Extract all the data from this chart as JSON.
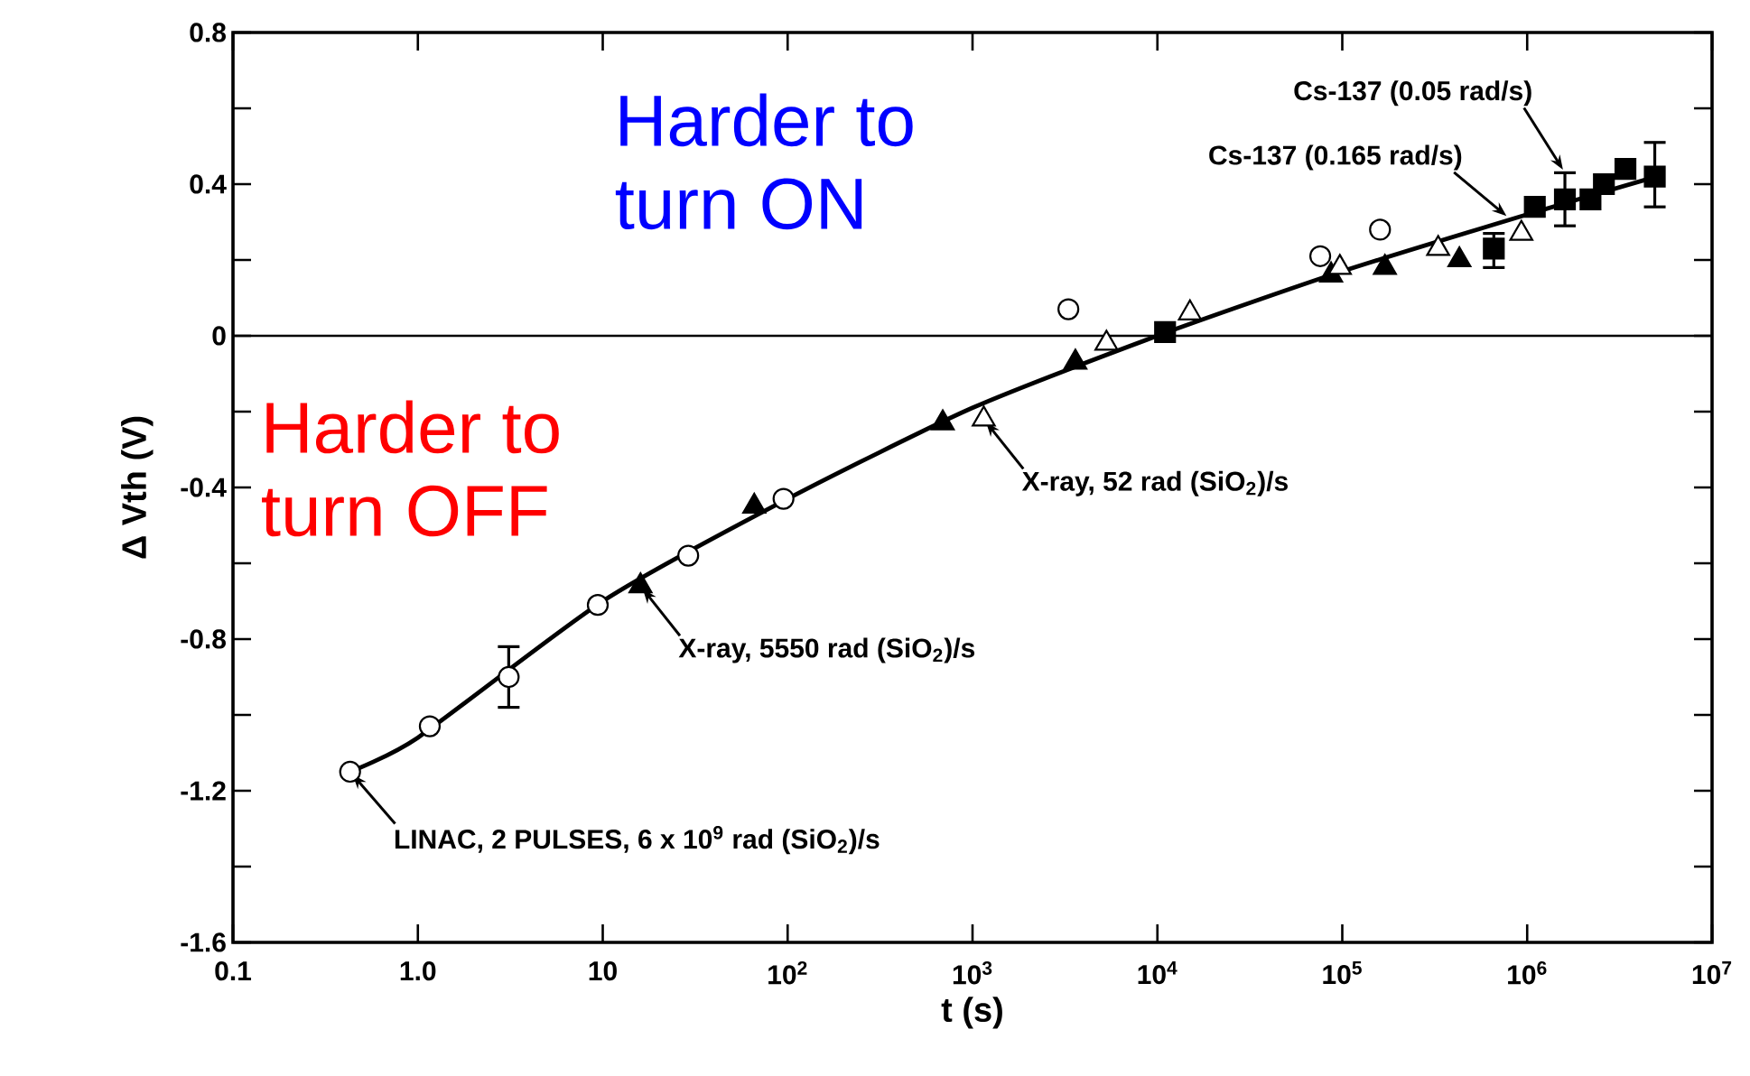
{
  "chart_data": {
    "type": "scatter",
    "xlabel": "t (s)",
    "ylabel": "Δ Vth (V)",
    "log": "x",
    "xlim": [
      0.1,
      10000000
    ],
    "ylim": [
      -1.6,
      0.8
    ],
    "xticks": [
      0.1,
      {
        "value": 1,
        "label": "1.0"
      },
      10,
      {
        "value": 100,
        "label": "10$^{2}$"
      },
      {
        "value": 1000,
        "label": "10$^{3}$"
      },
      {
        "value": 10000,
        "label": "10$^{4}$"
      },
      {
        "value": 100000,
        "label": "10$^{5}$"
      },
      {
        "value": 1000000,
        "label": "10$^{6}$"
      },
      {
        "value": 10000000,
        "label": "10$^{7}$"
      }
    ],
    "yticks": [
      0.8,
      {
        "value": 0.6,
        "label": null
      },
      0.4,
      {
        "value": 0.2,
        "label": null
      },
      0,
      {
        "value": -0.2,
        "label": null
      },
      -0.4,
      {
        "value": -0.6,
        "label": null
      },
      -0.8,
      {
        "value": -1.0,
        "label": null
      },
      -1.2,
      {
        "value": -1.4,
        "label": null
      },
      -1.6
    ],
    "ref_lines": [
      {
        "axis": "y",
        "value": 0,
        "color": "#000000"
      }
    ],
    "series": [
      {
        "marker": "circle",
        "color": "#ffffff",
        "x": [
          0.43,
          1.16,
          3.1,
          9.4,
          29,
          95,
          3300,
          76000,
          160000
        ],
        "values": [
          -1.15,
          -1.03,
          -0.9,
          -0.71,
          -0.58,
          -0.43,
          0.07,
          0.21,
          0.28
        ],
        "errors": [
          null,
          null,
          [
            -0.98,
            -0.82
          ],
          null,
          null,
          null,
          null,
          null,
          null
        ]
      },
      {
        "marker": "triangle",
        "color": "#000000",
        "x": [
          16,
          66,
          690,
          3600,
          87000,
          170000,
          430000
        ],
        "values": [
          -0.66,
          -0.45,
          -0.23,
          -0.07,
          0.16,
          0.18,
          0.2
        ]
      },
      {
        "marker": "triangle",
        "color": "#ffffff",
        "x": [
          1150,
          5300,
          15000,
          97000,
          330000,
          930000
        ],
        "values": [
          -0.22,
          -0.02,
          0.06,
          0.18,
          0.23,
          0.27
        ]
      },
      {
        "marker": "square",
        "color": "#000000",
        "x": [
          11000,
          660000,
          1100000,
          1600000,
          2200000,
          2600000,
          3400000,
          4900000
        ],
        "values": [
          0.01,
          0.23,
          0.34,
          0.36,
          0.36,
          0.4,
          0.44,
          0.42
        ],
        "errors": [
          null,
          [
            0.18,
            0.27
          ],
          null,
          [
            0.29,
            0.43
          ],
          null,
          null,
          null,
          [
            0.34,
            0.51
          ]
        ]
      },
      {
        "type": "line",
        "marker": "none",
        "color": "#000000",
        "x": [
          0.43,
          1,
          10,
          100,
          1000,
          10000,
          100000,
          1000000,
          5000000
        ],
        "values": [
          -1.15,
          -1.06,
          -0.7,
          -0.43,
          -0.19,
          0.0,
          0.17,
          0.32,
          0.42
        ]
      }
    ],
    "annotations": [
      "Harder to turn ON",
      "Harder to turn OFF",
      {
        "text": "LINAC, 2 PULSES, 6 x 10$^{9}$ rad (SiO$_{2}$)/s",
        "x": 0.43,
        "y": -1.15
      },
      {
        "text": "X-ray, 5550 rad (SiO$_{2}$)/s",
        "x": 16,
        "y": -0.66
      },
      {
        "text": "X-ray, 52 rad (SiO$_{2}$)/s",
        "x": 1150,
        "y": -0.22
      },
      {
        "text": "Cs-137 (0.165 rad/s)",
        "x": 800000,
        "y": 0.31
      },
      {
        "text": "Cs-137 (0.05 rad/s)",
        "x": 1600000,
        "y": 0.43
      }
    ]
  }
}
